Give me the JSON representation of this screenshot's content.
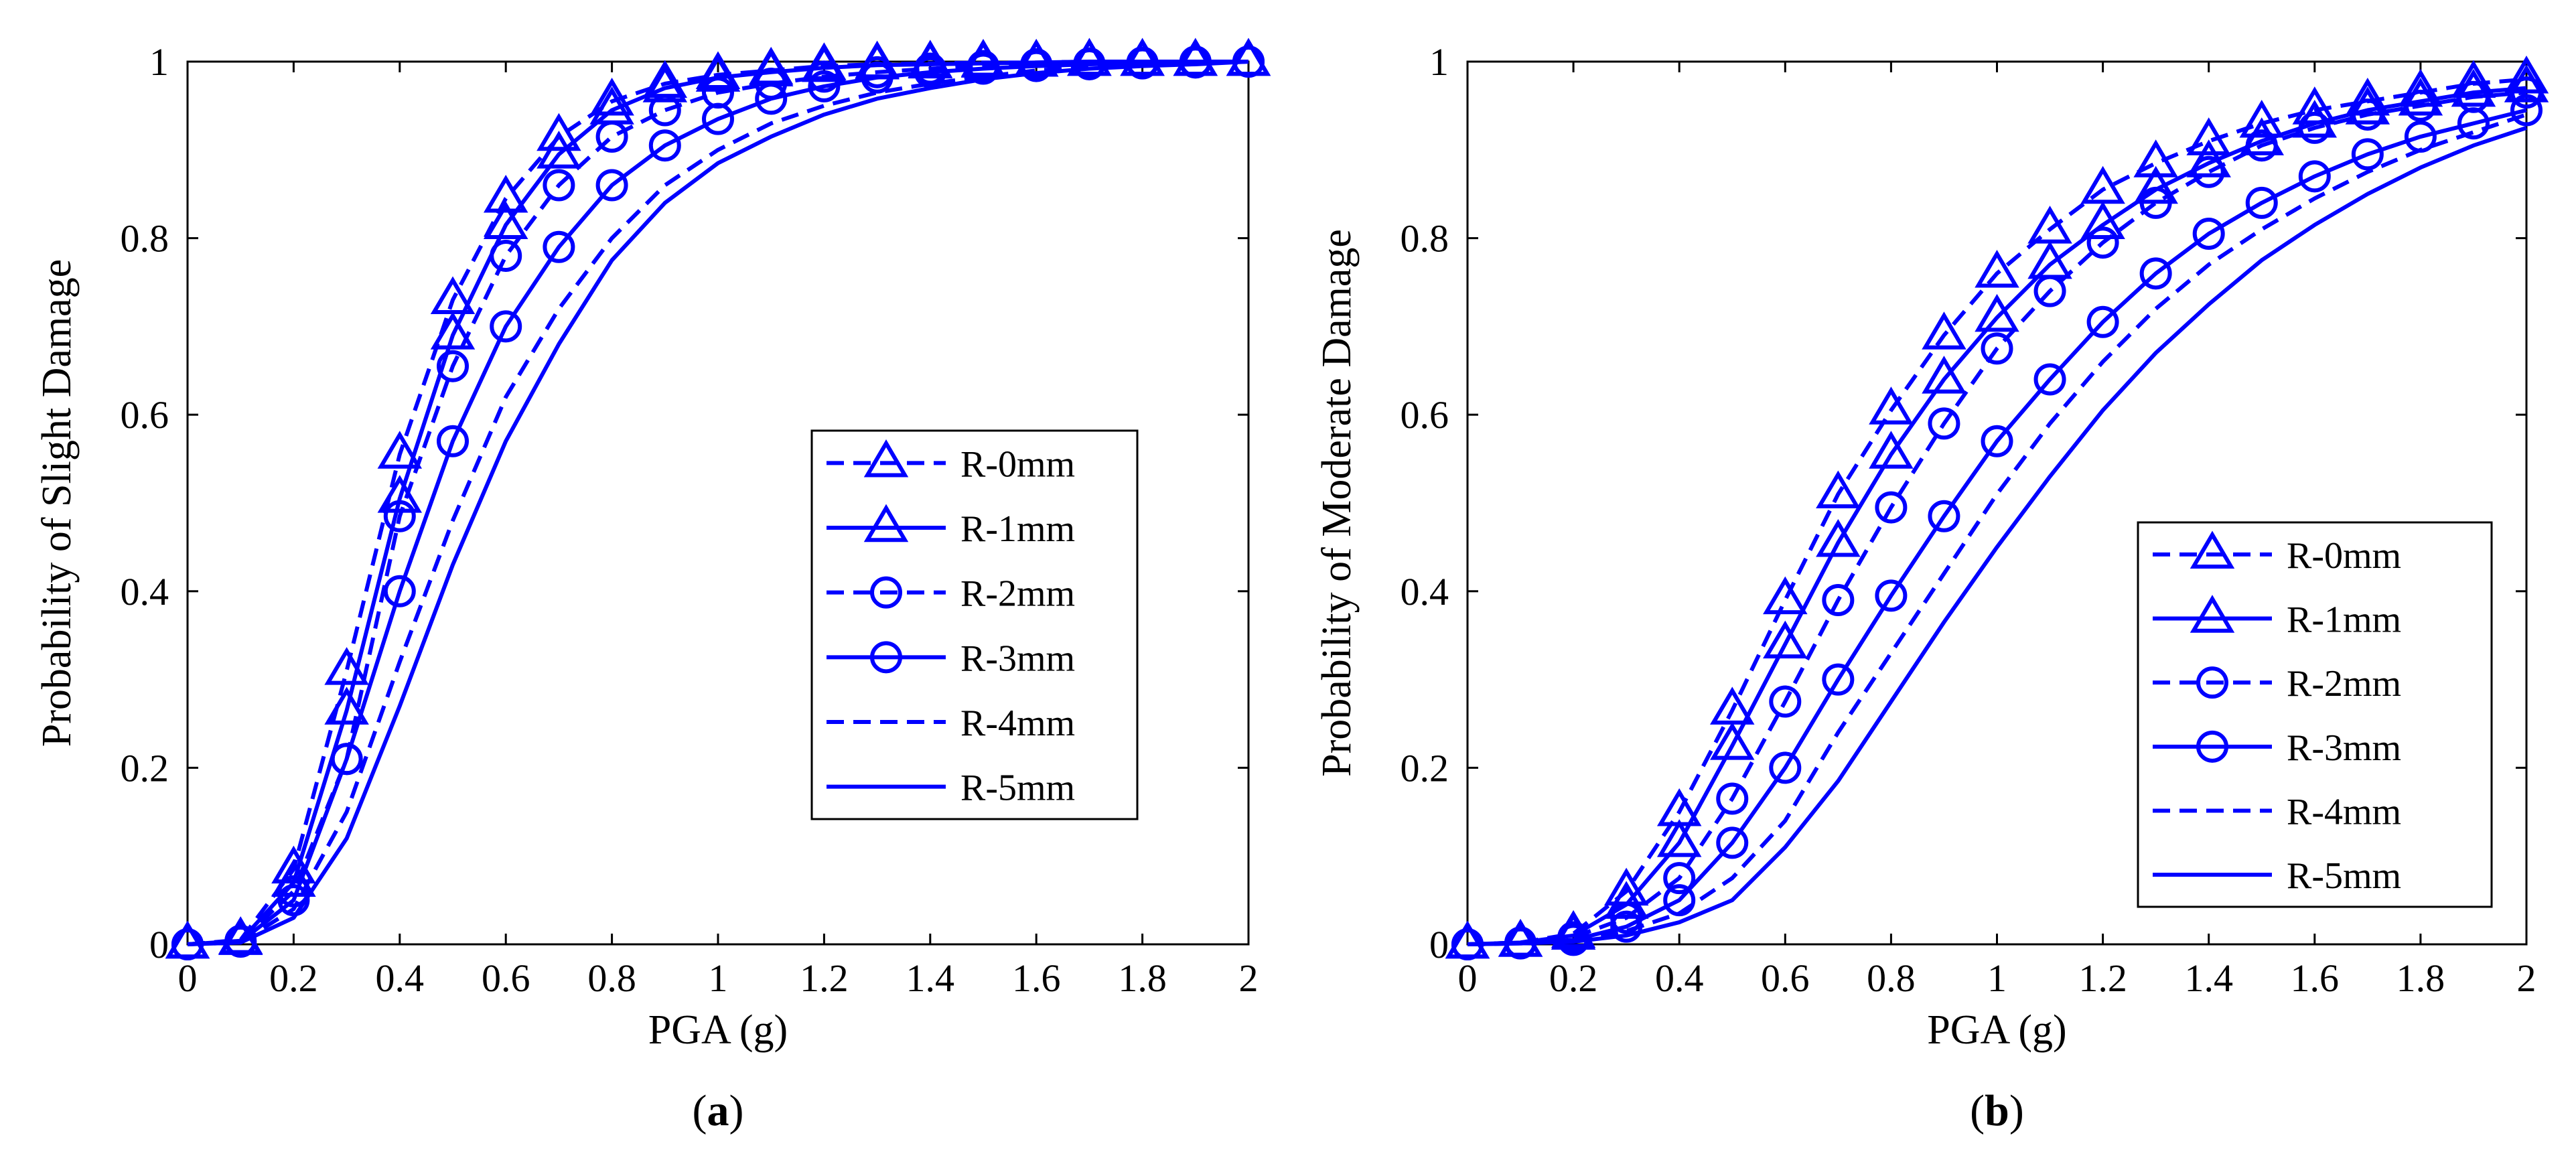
{
  "series_color": "#0000ff",
  "chart_data": [
    {
      "type": "line",
      "panel_label": "a",
      "xlabel": "PGA (g)",
      "ylabel": "Probability of Slight Damage",
      "xlim": [
        0,
        2
      ],
      "ylim": [
        0,
        1
      ],
      "xticks": [
        "0",
        "0.2",
        "0.4",
        "0.6",
        "0.8",
        "1",
        "1.2",
        "1.4",
        "1.6",
        "1.8",
        "2"
      ],
      "yticks": [
        "0",
        "0.2",
        "0.4",
        "0.6",
        "0.8",
        "1"
      ],
      "legend_position": "center-right",
      "x": [
        0,
        0.1,
        0.2,
        0.3,
        0.4,
        0.5,
        0.6,
        0.7,
        0.8,
        0.9,
        1.0,
        1.1,
        1.2,
        1.3,
        1.4,
        1.5,
        1.6,
        1.7,
        1.8,
        1.9,
        2.0
      ],
      "series": [
        {
          "name": "R-0mm",
          "dash": true,
          "marker": "triangle",
          "values": [
            0,
            0.005,
            0.085,
            0.31,
            0.555,
            0.73,
            0.845,
            0.915,
            0.955,
            0.975,
            0.985,
            0.99,
            0.995,
            0.997,
            0.998,
            0.999,
            0.999,
            1.0,
            1.0,
            1.0,
            1.0
          ]
        },
        {
          "name": "R-1mm",
          "dash": false,
          "marker": "triangle",
          "values": [
            0,
            0.004,
            0.07,
            0.265,
            0.505,
            0.69,
            0.815,
            0.895,
            0.945,
            0.97,
            0.982,
            0.988,
            0.993,
            0.996,
            0.997,
            0.998,
            0.999,
            1.0,
            1.0,
            1.0,
            1.0
          ]
        },
        {
          "name": "R-2mm",
          "dash": true,
          "marker": "circle",
          "values": [
            0,
            0.004,
            0.06,
            0.21,
            0.485,
            0.655,
            0.78,
            0.86,
            0.915,
            0.945,
            0.965,
            0.975,
            0.983,
            0.988,
            0.992,
            0.995,
            0.997,
            0.998,
            0.999,
            1.0,
            1.0
          ]
        },
        {
          "name": "R-3mm",
          "dash": false,
          "marker": "circle",
          "values": [
            0,
            0.003,
            0.05,
            0.21,
            0.4,
            0.57,
            0.7,
            0.79,
            0.86,
            0.905,
            0.935,
            0.958,
            0.972,
            0.982,
            0.988,
            0.992,
            0.995,
            0.997,
            0.998,
            0.999,
            1.0
          ]
        },
        {
          "name": "R-4mm",
          "dash": true,
          "marker": "none",
          "values": [
            0,
            0.002,
            0.04,
            0.15,
            0.32,
            0.48,
            0.62,
            0.72,
            0.8,
            0.86,
            0.9,
            0.93,
            0.95,
            0.965,
            0.975,
            0.983,
            0.99,
            0.994,
            0.996,
            0.998,
            1.0
          ]
        },
        {
          "name": "R-5mm",
          "dash": false,
          "marker": "none",
          "values": [
            0,
            0.002,
            0.03,
            0.12,
            0.27,
            0.43,
            0.57,
            0.68,
            0.775,
            0.84,
            0.885,
            0.915,
            0.94,
            0.958,
            0.97,
            0.98,
            0.987,
            0.992,
            0.995,
            0.997,
            1.0
          ]
        }
      ]
    },
    {
      "type": "line",
      "panel_label": "b",
      "xlabel": "PGA (g)",
      "ylabel": "Probability of Moderate Damage",
      "xlim": [
        0,
        2
      ],
      "ylim": [
        0,
        1
      ],
      "xticks": [
        "0",
        "0.2",
        "0.4",
        "0.6",
        "0.8",
        "1",
        "1.2",
        "1.4",
        "1.6",
        "1.8",
        "2"
      ],
      "yticks": [
        "0",
        "0.2",
        "0.4",
        "0.6",
        "0.8",
        "1"
      ],
      "legend_position": "bottom-right",
      "x": [
        0,
        0.1,
        0.2,
        0.3,
        0.4,
        0.5,
        0.6,
        0.7,
        0.8,
        0.9,
        1.0,
        1.1,
        1.2,
        1.3,
        1.4,
        1.5,
        1.6,
        1.7,
        1.8,
        1.9,
        2.0
      ],
      "series": [
        {
          "name": "R-0mm",
          "dash": true,
          "marker": "triangle",
          "values": [
            0,
            0.002,
            0.012,
            0.06,
            0.15,
            0.265,
            0.39,
            0.51,
            0.605,
            0.69,
            0.76,
            0.81,
            0.855,
            0.885,
            0.91,
            0.93,
            0.945,
            0.955,
            0.965,
            0.975,
            0.98
          ]
        },
        {
          "name": "R-1mm",
          "dash": false,
          "marker": "triangle",
          "values": [
            0,
            0.002,
            0.01,
            0.045,
            0.115,
            0.225,
            0.34,
            0.455,
            0.555,
            0.64,
            0.71,
            0.77,
            0.815,
            0.855,
            0.885,
            0.91,
            0.93,
            0.945,
            0.955,
            0.965,
            0.97
          ]
        },
        {
          "name": "R-2mm",
          "dash": true,
          "marker": "circle",
          "values": [
            0,
            0.002,
            0.008,
            0.03,
            0.075,
            0.165,
            0.275,
            0.39,
            0.495,
            0.59,
            0.675,
            0.74,
            0.795,
            0.84,
            0.875,
            0.905,
            0.925,
            0.94,
            0.95,
            0.96,
            0.965
          ]
        },
        {
          "name": "R-3mm",
          "dash": false,
          "marker": "circle",
          "values": [
            0,
            0.001,
            0.005,
            0.02,
            0.05,
            0.115,
            0.2,
            0.3,
            0.395,
            0.485,
            0.57,
            0.64,
            0.705,
            0.76,
            0.805,
            0.84,
            0.87,
            0.895,
            0.915,
            0.93,
            0.945
          ]
        },
        {
          "name": "R-4mm",
          "dash": true,
          "marker": "none",
          "values": [
            0,
            0.001,
            0.004,
            0.015,
            0.035,
            0.075,
            0.14,
            0.24,
            0.33,
            0.42,
            0.51,
            0.59,
            0.66,
            0.72,
            0.77,
            0.81,
            0.845,
            0.875,
            0.9,
            0.92,
            0.94
          ]
        },
        {
          "name": "R-5mm",
          "dash": false,
          "marker": "none",
          "values": [
            0,
            0.001,
            0.003,
            0.01,
            0.025,
            0.05,
            0.11,
            0.185,
            0.275,
            0.365,
            0.45,
            0.53,
            0.605,
            0.67,
            0.725,
            0.775,
            0.815,
            0.85,
            0.88,
            0.905,
            0.925
          ]
        }
      ]
    }
  ]
}
